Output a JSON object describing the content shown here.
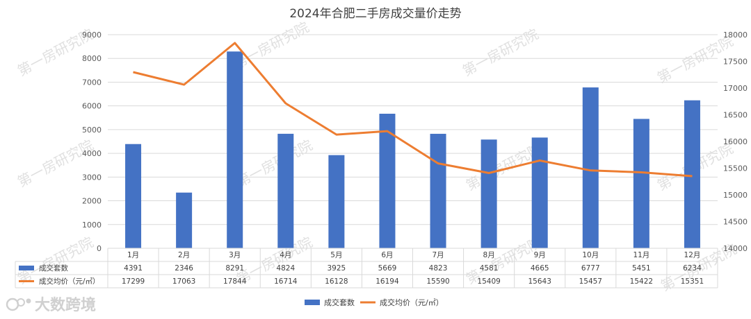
{
  "chart_data": {
    "type": "bar",
    "title": "2024年合肥二手房成交量价走势",
    "categories": [
      "1月",
      "2月",
      "3月",
      "4月",
      "5月",
      "6月",
      "7月",
      "8月",
      "9月",
      "10月",
      "11月",
      "12月"
    ],
    "series": [
      {
        "name": "成交套数",
        "type": "bar",
        "axis": "left",
        "color": "#4472C4",
        "values": [
          4391,
          2346,
          8291,
          4824,
          3925,
          5669,
          4823,
          4581,
          4665,
          6777,
          5451,
          6234
        ]
      },
      {
        "name": "成交均价（元/㎡）",
        "type": "line",
        "axis": "right",
        "color": "#ED7D31",
        "values": [
          17299,
          17063,
          17844,
          16714,
          16128,
          16194,
          15590,
          15409,
          15643,
          15457,
          15422,
          15351
        ]
      }
    ],
    "y_left": {
      "min": 0,
      "max": 9000,
      "step": 1000
    },
    "y_right": {
      "min": 14000,
      "max": 18000,
      "step": 500
    },
    "grid": true,
    "data_table": true,
    "legend_position": "bottom",
    "legend": [
      "成交套数",
      "成交均价（元/㎡）"
    ]
  },
  "watermark": "第一房研究院",
  "logo_text": "大数跨境"
}
